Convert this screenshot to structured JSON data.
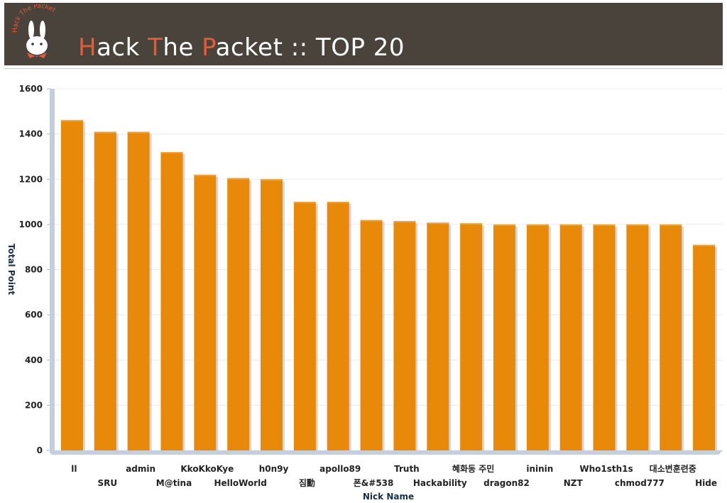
{
  "header": {
    "logo_text": "Hack The Packet",
    "title_parts": [
      {
        "text": "H",
        "accent": true
      },
      {
        "text": "ack ",
        "accent": false
      },
      {
        "text": "T",
        "accent": true
      },
      {
        "text": "he ",
        "accent": false
      },
      {
        "text": "P",
        "accent": true
      },
      {
        "text": "acket :: TOP 20",
        "accent": false
      }
    ],
    "bg_color": "#49433b",
    "accent_color": "#e45a3c"
  },
  "chart_data": {
    "type": "bar",
    "categories": [
      "ll",
      "SRU",
      "admin",
      "M@tina",
      "KkoKkoKye",
      "HelloWorld",
      "h0n9y",
      "짐勳",
      "apollo89",
      "폰&#538",
      "Truth",
      "Hackability",
      "혜화동 주민",
      "dragon82",
      "ininin",
      "NZT",
      "Who1sth1s",
      "chmod777",
      "대소변훈련중",
      "Hide"
    ],
    "values": [
      1462,
      1410,
      1410,
      1320,
      1220,
      1205,
      1200,
      1100,
      1100,
      1020,
      1015,
      1008,
      1005,
      1000,
      1000,
      1000,
      1000,
      1000,
      1000,
      910
    ],
    "xlabel": "Nick Name",
    "ylabel": "Total Point",
    "ylim": [
      0,
      1600
    ],
    "yticks": [
      0,
      200,
      400,
      600,
      800,
      1000,
      1200,
      1400,
      1600
    ],
    "bar_color": "#e8890a",
    "grid": true
  }
}
